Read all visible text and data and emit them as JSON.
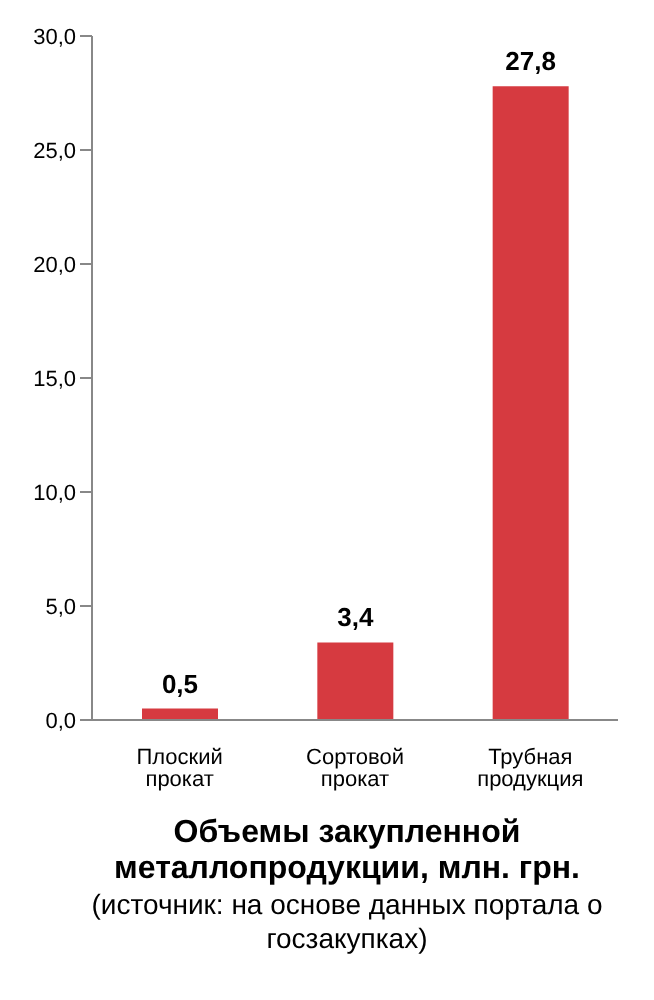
{
  "chart_data": {
    "type": "bar",
    "title": "Объемы закупленной металлопродукции, млн. грн.",
    "annotations": [
      "(источник: на основе данных портала о госзакупках)"
    ],
    "categories": [
      "Плоский  прокат",
      "Сортовой прокат",
      "Трубная продукция"
    ],
    "values": [
      0.5,
      3.4,
      27.8
    ],
    "color": "#d63a40",
    "value_labels": [
      "0,5",
      "3,4",
      "27,8"
    ],
    "ylim": [
      0,
      30
    ],
    "yticks": [
      {
        "value": 0,
        "label": "0,0"
      },
      {
        "value": 5,
        "label": "5,0"
      },
      {
        "value": 10,
        "label": "10,0"
      },
      {
        "value": 15,
        "label": "15,0"
      },
      {
        "value": 20,
        "label": "20,0"
      },
      {
        "value": 25,
        "label": "25,0"
      },
      {
        "value": 30,
        "label": "30,0"
      }
    ],
    "grid": false,
    "legend": false
  }
}
